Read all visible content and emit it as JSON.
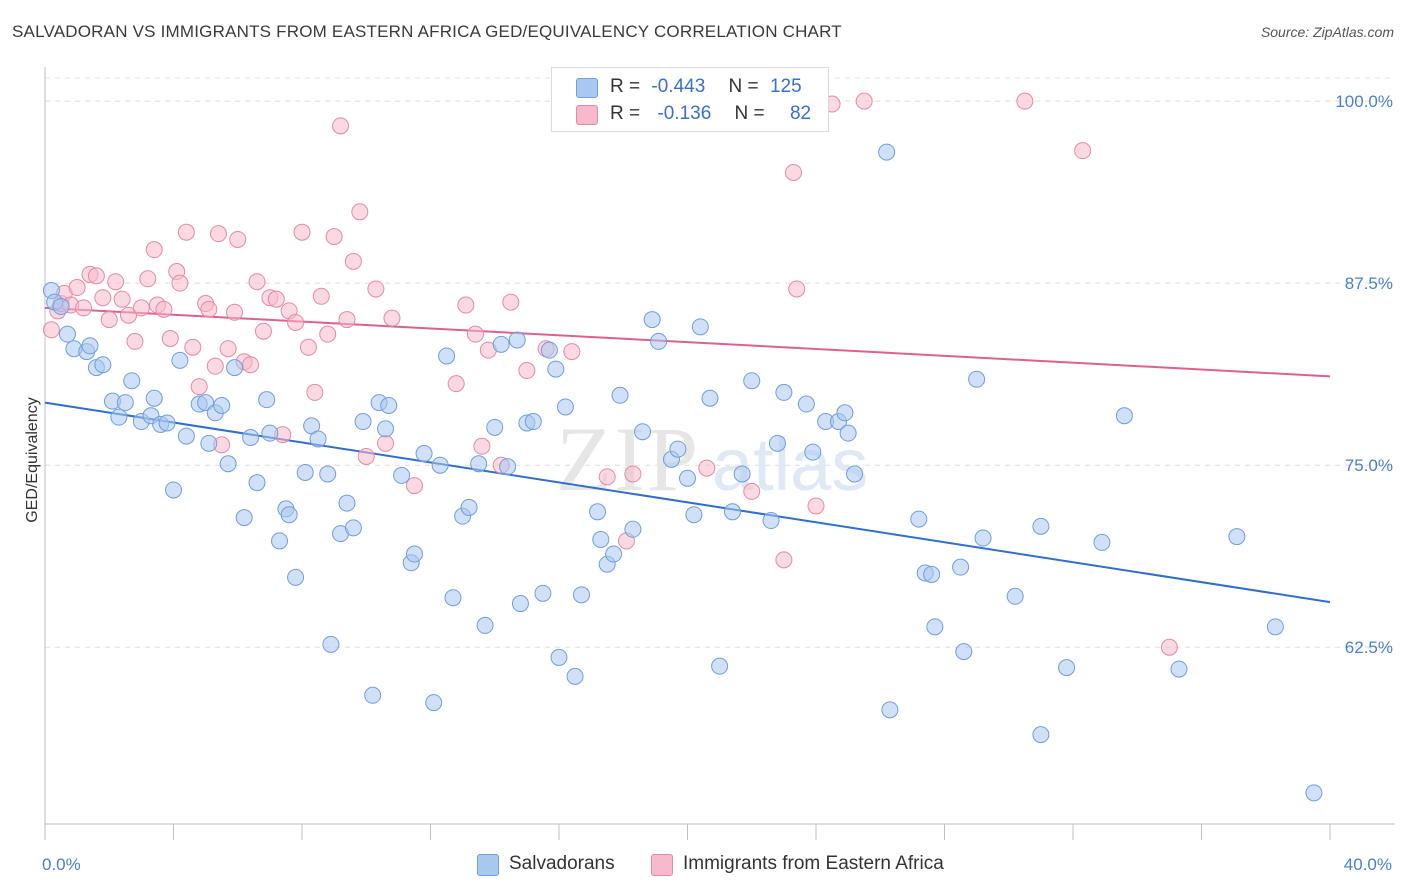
{
  "header": {
    "title": "SALVADORAN VS IMMIGRANTS FROM EASTERN AFRICA GED/EQUIVALENCY CORRELATION CHART",
    "source": "Source: ZipAtlas.com"
  },
  "watermark": {
    "zip": "ZIP",
    "atlas": "atlas"
  },
  "legend": {
    "rows": [
      {
        "r_label": "R =",
        "r_value": "-0.443",
        "n_label": "N =",
        "n_value": "125",
        "color": "#a9c8f0"
      },
      {
        "r_label": "R =",
        "r_value": "-0.136",
        "n_label": "N =",
        "n_value": "82",
        "color": "#f7b9cb"
      }
    ]
  },
  "bottom_legend": {
    "items": [
      {
        "label": "Salvadorans",
        "color": "#a9c8f0"
      },
      {
        "label": "Immigrants from Eastern Africa",
        "color": "#f7b9cb"
      }
    ]
  },
  "chart_data": {
    "type": "scatter",
    "xlabel": "",
    "ylabel": "GED/Equivalency",
    "xlim": [
      0,
      40
    ],
    "ylim": [
      50.5,
      102
    ],
    "x_tick_labels": [
      {
        "value": 0,
        "label": "0.0%"
      },
      {
        "value": 40,
        "label": "40.0%"
      }
    ],
    "y_ticks": [
      {
        "value": 100,
        "label": "100.0%"
      },
      {
        "value": 87.5,
        "label": "87.5%"
      },
      {
        "value": 75,
        "label": "75.0%"
      },
      {
        "value": 62.5,
        "label": "62.5%"
      }
    ],
    "grid": true,
    "colors": {
      "blue_fill": "#a9c8f0",
      "blue_stroke": "#6f9edc",
      "blue_line": "#2e6fcf",
      "pink_fill": "#f7b9cb",
      "pink_stroke": "#e48aa6",
      "pink_line": "#e0608c"
    },
    "series": [
      {
        "name": "Salvadorans",
        "trend": {
          "x": [
            0,
            40
          ],
          "y": [
            79.3,
            65.6
          ]
        },
        "points": [
          [
            0.2,
            87.0
          ],
          [
            0.3,
            86.2
          ],
          [
            0.5,
            85.9
          ],
          [
            0.7,
            84.0
          ],
          [
            0.9,
            83.0
          ],
          [
            1.3,
            82.8
          ],
          [
            1.4,
            83.2
          ],
          [
            1.6,
            81.7
          ],
          [
            1.8,
            81.9
          ],
          [
            2.1,
            79.4
          ],
          [
            2.3,
            78.3
          ],
          [
            2.5,
            79.3
          ],
          [
            2.7,
            80.8
          ],
          [
            3.0,
            78.0
          ],
          [
            3.3,
            78.4
          ],
          [
            3.4,
            79.6
          ],
          [
            3.6,
            77.8
          ],
          [
            3.8,
            77.9
          ],
          [
            4.0,
            73.3
          ],
          [
            4.2,
            82.2
          ],
          [
            4.4,
            77.0
          ],
          [
            4.8,
            79.2
          ],
          [
            5.0,
            79.3
          ],
          [
            5.1,
            76.5
          ],
          [
            5.3,
            78.6
          ],
          [
            5.5,
            79.1
          ],
          [
            5.7,
            75.1
          ],
          [
            5.9,
            81.7
          ],
          [
            6.2,
            71.4
          ],
          [
            6.4,
            76.9
          ],
          [
            6.6,
            73.8
          ],
          [
            6.9,
            79.5
          ],
          [
            7.0,
            77.2
          ],
          [
            7.3,
            69.8
          ],
          [
            7.5,
            72.0
          ],
          [
            7.6,
            71.6
          ],
          [
            7.8,
            67.3
          ],
          [
            8.1,
            74.5
          ],
          [
            8.3,
            77.7
          ],
          [
            8.5,
            76.8
          ],
          [
            8.8,
            74.4
          ],
          [
            8.9,
            62.7
          ],
          [
            9.2,
            70.3
          ],
          [
            9.4,
            72.4
          ],
          [
            9.6,
            70.7
          ],
          [
            9.9,
            78.0
          ],
          [
            10.2,
            59.2
          ],
          [
            10.4,
            79.3
          ],
          [
            10.6,
            77.5
          ],
          [
            10.7,
            79.1
          ],
          [
            11.1,
            74.3
          ],
          [
            11.4,
            68.3
          ],
          [
            11.5,
            68.9
          ],
          [
            11.8,
            75.8
          ],
          [
            12.1,
            58.7
          ],
          [
            12.3,
            75.0
          ],
          [
            12.5,
            82.5
          ],
          [
            12.7,
            65.9
          ],
          [
            13.0,
            71.5
          ],
          [
            13.2,
            72.1
          ],
          [
            13.5,
            75.1
          ],
          [
            13.7,
            64.0
          ],
          [
            14.0,
            77.6
          ],
          [
            14.2,
            83.3
          ],
          [
            14.4,
            74.9
          ],
          [
            14.7,
            83.6
          ],
          [
            14.8,
            65.5
          ],
          [
            15.0,
            77.9
          ],
          [
            15.2,
            78.0
          ],
          [
            15.5,
            66.2
          ],
          [
            15.7,
            82.9
          ],
          [
            15.9,
            81.6
          ],
          [
            16.0,
            61.8
          ],
          [
            16.2,
            79.0
          ],
          [
            16.5,
            60.5
          ],
          [
            16.7,
            66.1
          ],
          [
            17.2,
            71.8
          ],
          [
            17.3,
            69.9
          ],
          [
            17.5,
            68.2
          ],
          [
            17.7,
            68.9
          ],
          [
            17.9,
            79.8
          ],
          [
            18.3,
            70.6
          ],
          [
            18.6,
            77.3
          ],
          [
            18.9,
            85.0
          ],
          [
            19.1,
            83.5
          ],
          [
            19.5,
            75.4
          ],
          [
            19.7,
            76.1
          ],
          [
            20.0,
            74.1
          ],
          [
            20.2,
            71.6
          ],
          [
            20.4,
            84.5
          ],
          [
            20.7,
            79.6
          ],
          [
            21.0,
            61.2
          ],
          [
            21.4,
            71.8
          ],
          [
            21.7,
            74.4
          ],
          [
            22.0,
            80.8
          ],
          [
            22.6,
            71.2
          ],
          [
            22.8,
            76.5
          ],
          [
            23.0,
            80.0
          ],
          [
            23.7,
            79.2
          ],
          [
            23.9,
            75.9
          ],
          [
            24.3,
            78.0
          ],
          [
            24.7,
            78.0
          ],
          [
            24.9,
            78.6
          ],
          [
            25.0,
            77.2
          ],
          [
            25.2,
            74.4
          ],
          [
            26.2,
            96.5
          ],
          [
            26.3,
            58.2
          ],
          [
            27.2,
            71.3
          ],
          [
            27.4,
            67.6
          ],
          [
            27.6,
            67.5
          ],
          [
            27.7,
            63.9
          ],
          [
            28.5,
            68.0
          ],
          [
            28.6,
            62.2
          ],
          [
            29.0,
            80.9
          ],
          [
            29.2,
            70.0
          ],
          [
            30.2,
            66.0
          ],
          [
            31.0,
            56.5
          ],
          [
            31.0,
            70.8
          ],
          [
            31.8,
            61.1
          ],
          [
            32.9,
            69.7
          ],
          [
            33.6,
            78.4
          ],
          [
            35.3,
            61.0
          ],
          [
            37.1,
            70.1
          ],
          [
            38.3,
            63.9
          ],
          [
            39.5,
            52.5
          ]
        ]
      },
      {
        "name": "Immigrants from Eastern Africa",
        "trend": {
          "x": [
            0,
            40
          ],
          "y": [
            85.8,
            81.1
          ]
        },
        "points": [
          [
            0.2,
            84.3
          ],
          [
            0.4,
            85.6
          ],
          [
            0.5,
            86.1
          ],
          [
            0.6,
            86.8
          ],
          [
            0.8,
            86.0
          ],
          [
            1.0,
            87.2
          ],
          [
            1.2,
            85.8
          ],
          [
            1.4,
            88.1
          ],
          [
            1.6,
            88.0
          ],
          [
            1.8,
            86.5
          ],
          [
            2.0,
            85.0
          ],
          [
            2.2,
            87.6
          ],
          [
            2.4,
            86.4
          ],
          [
            2.6,
            85.3
          ],
          [
            2.8,
            83.5
          ],
          [
            3.0,
            85.8
          ],
          [
            3.2,
            87.8
          ],
          [
            3.4,
            89.8
          ],
          [
            3.5,
            86.0
          ],
          [
            3.7,
            85.7
          ],
          [
            3.9,
            83.7
          ],
          [
            4.1,
            88.3
          ],
          [
            4.2,
            87.5
          ],
          [
            4.4,
            91.0
          ],
          [
            4.6,
            83.1
          ],
          [
            4.8,
            80.4
          ],
          [
            5.0,
            86.1
          ],
          [
            5.1,
            85.7
          ],
          [
            5.3,
            81.8
          ],
          [
            5.4,
            90.9
          ],
          [
            5.5,
            76.4
          ],
          [
            5.7,
            83.0
          ],
          [
            5.9,
            85.5
          ],
          [
            6.0,
            90.5
          ],
          [
            6.2,
            82.1
          ],
          [
            6.4,
            81.9
          ],
          [
            6.6,
            87.6
          ],
          [
            6.8,
            84.2
          ],
          [
            7.0,
            86.5
          ],
          [
            7.2,
            86.4
          ],
          [
            7.4,
            77.1
          ],
          [
            7.6,
            85.6
          ],
          [
            7.8,
            84.8
          ],
          [
            8.0,
            91.0
          ],
          [
            8.2,
            83.1
          ],
          [
            8.4,
            80.0
          ],
          [
            8.6,
            86.6
          ],
          [
            8.8,
            84.0
          ],
          [
            9.0,
            90.7
          ],
          [
            9.2,
            98.3
          ],
          [
            9.4,
            85.0
          ],
          [
            9.6,
            89.0
          ],
          [
            9.8,
            92.4
          ],
          [
            10.0,
            75.6
          ],
          [
            10.3,
            87.1
          ],
          [
            10.6,
            76.5
          ],
          [
            10.8,
            85.1
          ],
          [
            11.5,
            73.6
          ],
          [
            12.8,
            80.6
          ],
          [
            13.1,
            86.0
          ],
          [
            13.4,
            84.0
          ],
          [
            13.6,
            76.3
          ],
          [
            13.8,
            82.9
          ],
          [
            14.2,
            75.0
          ],
          [
            14.5,
            86.2
          ],
          [
            15.0,
            81.5
          ],
          [
            15.6,
            83.0
          ],
          [
            16.4,
            82.8
          ],
          [
            17.5,
            74.2
          ],
          [
            18.1,
            69.8
          ],
          [
            18.3,
            74.4
          ],
          [
            20.6,
            74.8
          ],
          [
            22.0,
            73.2
          ],
          [
            23.0,
            68.5
          ],
          [
            23.3,
            95.1
          ],
          [
            23.4,
            87.1
          ],
          [
            24.0,
            72.2
          ],
          [
            24.5,
            99.8
          ],
          [
            25.5,
            100.0
          ],
          [
            30.5,
            100.0
          ],
          [
            32.3,
            96.6
          ],
          [
            35.0,
            62.5
          ]
        ]
      }
    ]
  }
}
